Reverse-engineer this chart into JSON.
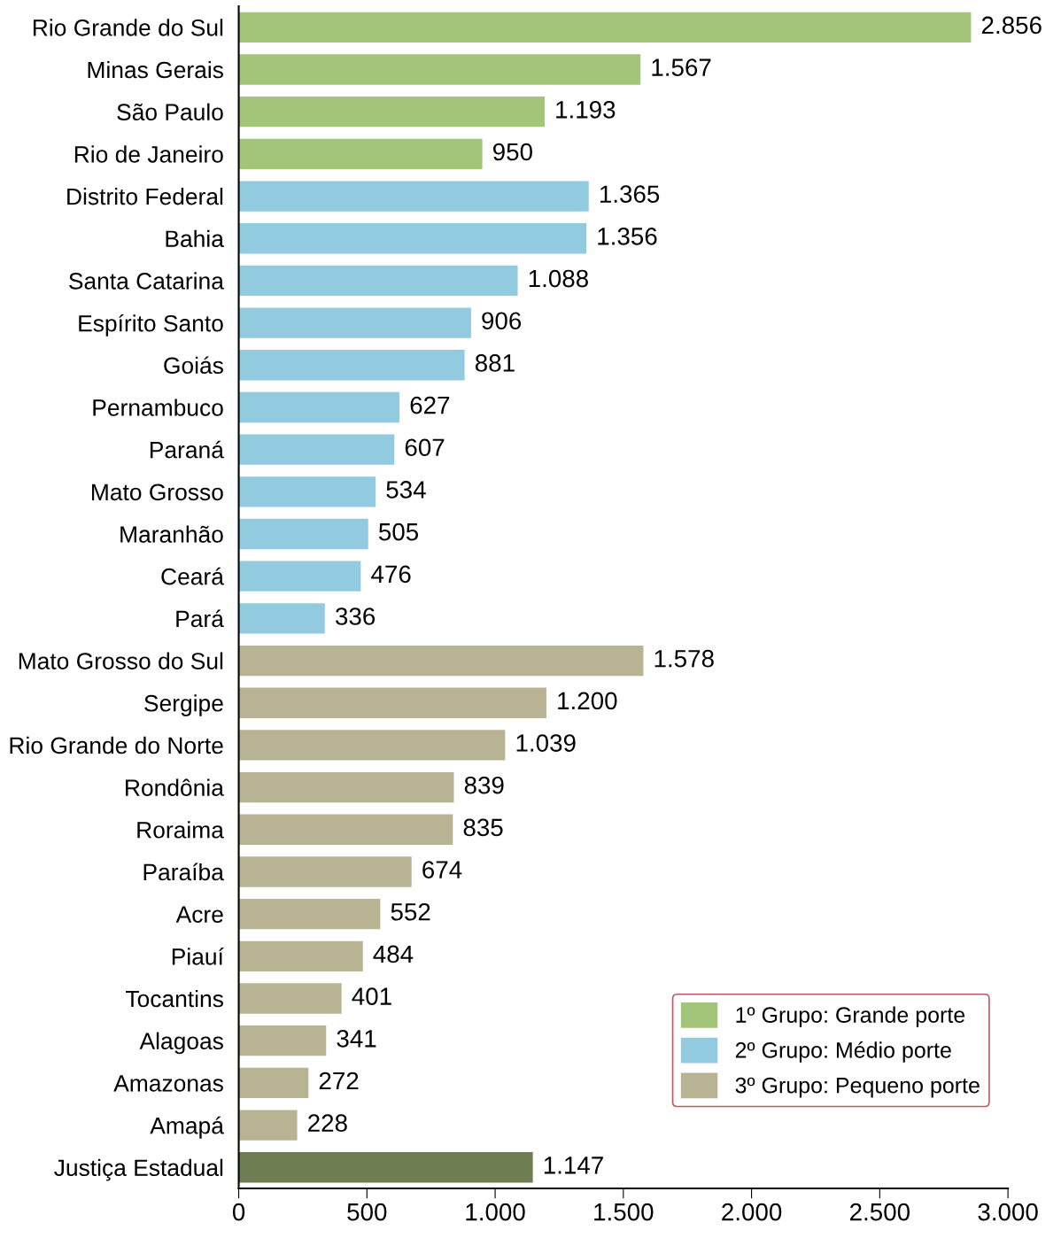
{
  "chart_data": {
    "type": "bar",
    "orientation": "horizontal",
    "categories": [
      "Rio Grande do Sul",
      "Minas Gerais",
      "São Paulo",
      "Rio de Janeiro",
      "Distrito Federal",
      "Bahia",
      "Santa Catarina",
      "Espírito Santo",
      "Goiás",
      "Pernambuco",
      "Paraná",
      "Mato Grosso",
      "Maranhão",
      "Ceará",
      "Pará",
      "Mato Grosso do Sul",
      "Sergipe",
      "Rio Grande do Norte",
      "Rondônia",
      "Roraima",
      "Paraíba",
      "Acre",
      "Piauí",
      "Tocantins",
      "Alagoas",
      "Amazonas",
      "Amapá",
      "Justiça Estadual"
    ],
    "series": [
      {
        "name": "1º Grupo: Grande porte",
        "color": "#a3c57a",
        "values": [
          2856,
          1567,
          1193,
          950,
          null,
          null,
          null,
          null,
          null,
          null,
          null,
          null,
          null,
          null,
          null,
          null,
          null,
          null,
          null,
          null,
          null,
          null,
          null,
          null,
          null,
          null,
          null,
          null
        ],
        "value_labels": [
          "2.856",
          "1.567",
          "1.193",
          "950",
          null,
          null,
          null,
          null,
          null,
          null,
          null,
          null,
          null,
          null,
          null,
          null,
          null,
          null,
          null,
          null,
          null,
          null,
          null,
          null,
          null,
          null,
          null,
          null
        ]
      },
      {
        "name": "2º Grupo: Médio porte",
        "color": "#92cbe0",
        "values": [
          null,
          null,
          null,
          null,
          1365,
          1356,
          1088,
          906,
          881,
          627,
          607,
          534,
          505,
          476,
          336,
          null,
          null,
          null,
          null,
          null,
          null,
          null,
          null,
          null,
          null,
          null,
          null,
          null
        ],
        "value_labels": [
          null,
          null,
          null,
          null,
          "1.365",
          "1.356",
          "1.088",
          "906",
          "881",
          "627",
          "607",
          "534",
          "505",
          "476",
          "336",
          null,
          null,
          null,
          null,
          null,
          null,
          null,
          null,
          null,
          null,
          null,
          null,
          null
        ]
      },
      {
        "name": "3º Grupo: Pequeno porte",
        "color": "#b8b393",
        "values": [
          null,
          null,
          null,
          null,
          null,
          null,
          null,
          null,
          null,
          null,
          null,
          null,
          null,
          null,
          null,
          1578,
          1200,
          1039,
          839,
          835,
          674,
          552,
          484,
          401,
          341,
          272,
          228,
          null
        ],
        "value_labels": [
          null,
          null,
          null,
          null,
          null,
          null,
          null,
          null,
          null,
          null,
          null,
          null,
          null,
          null,
          null,
          "1.578",
          "1.200",
          "1.039",
          "839",
          "835",
          "674",
          "552",
          "484",
          "401",
          "341",
          "272",
          "228",
          null
        ]
      },
      {
        "color": "#6f7d52",
        "values": [
          null,
          null,
          null,
          null,
          null,
          null,
          null,
          null,
          null,
          null,
          null,
          null,
          null,
          null,
          null,
          null,
          null,
          null,
          null,
          null,
          null,
          null,
          null,
          null,
          null,
          null,
          null,
          1147
        ],
        "value_labels": [
          null,
          null,
          null,
          null,
          null,
          null,
          null,
          null,
          null,
          null,
          null,
          null,
          null,
          null,
          null,
          null,
          null,
          null,
          null,
          null,
          null,
          null,
          null,
          null,
          null,
          null,
          null,
          "1.147"
        ]
      }
    ],
    "xlim": [
      0,
      3000
    ],
    "xticks": [
      0,
      500,
      {
        "value": 1000,
        "label": "1.000"
      },
      {
        "value": 1500,
        "label": "1.500"
      },
      {
        "value": 2000,
        "label": "2.000"
      },
      {
        "value": 2500,
        "label": "2.500"
      },
      {
        "value": 3000,
        "label": "3.000"
      }
    ],
    "grid": false,
    "legend": "bottom right"
  }
}
